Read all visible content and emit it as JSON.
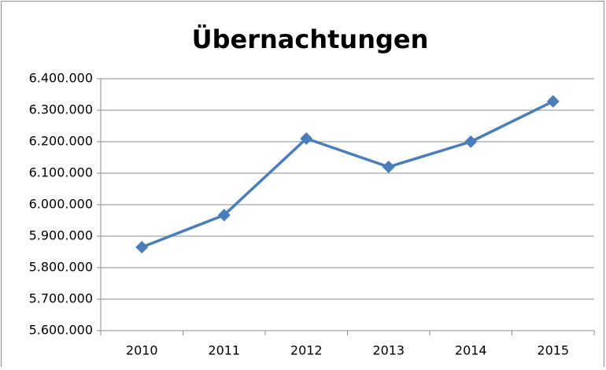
{
  "chart_data": {
    "type": "line",
    "title": "Übernachtungen",
    "categories": [
      "2010",
      "2011",
      "2012",
      "2013",
      "2014",
      "2015"
    ],
    "series": [
      {
        "name": "Übernachtungen",
        "color": "#4a7ebb",
        "values": [
          5865000,
          5967000,
          6210000,
          6120000,
          6200000,
          6328000
        ]
      }
    ],
    "ylim": [
      5600000,
      6400000
    ],
    "yticks": [
      {
        "value": 5600000,
        "label": "5.600.000"
      },
      {
        "value": 5700000,
        "label": "5.700.000"
      },
      {
        "value": 5800000,
        "label": "5.800.000"
      },
      {
        "value": 5900000,
        "label": "5.900.000"
      },
      {
        "value": 6000000,
        "label": "6.000.000"
      },
      {
        "value": 6100000,
        "label": "6.100.000"
      },
      {
        "value": 6200000,
        "label": "6.200.000"
      },
      {
        "value": 6300000,
        "label": "6.300.000"
      },
      {
        "value": 6400000,
        "label": "6.400.000"
      }
    ],
    "grid": true,
    "marker": "diamond"
  }
}
